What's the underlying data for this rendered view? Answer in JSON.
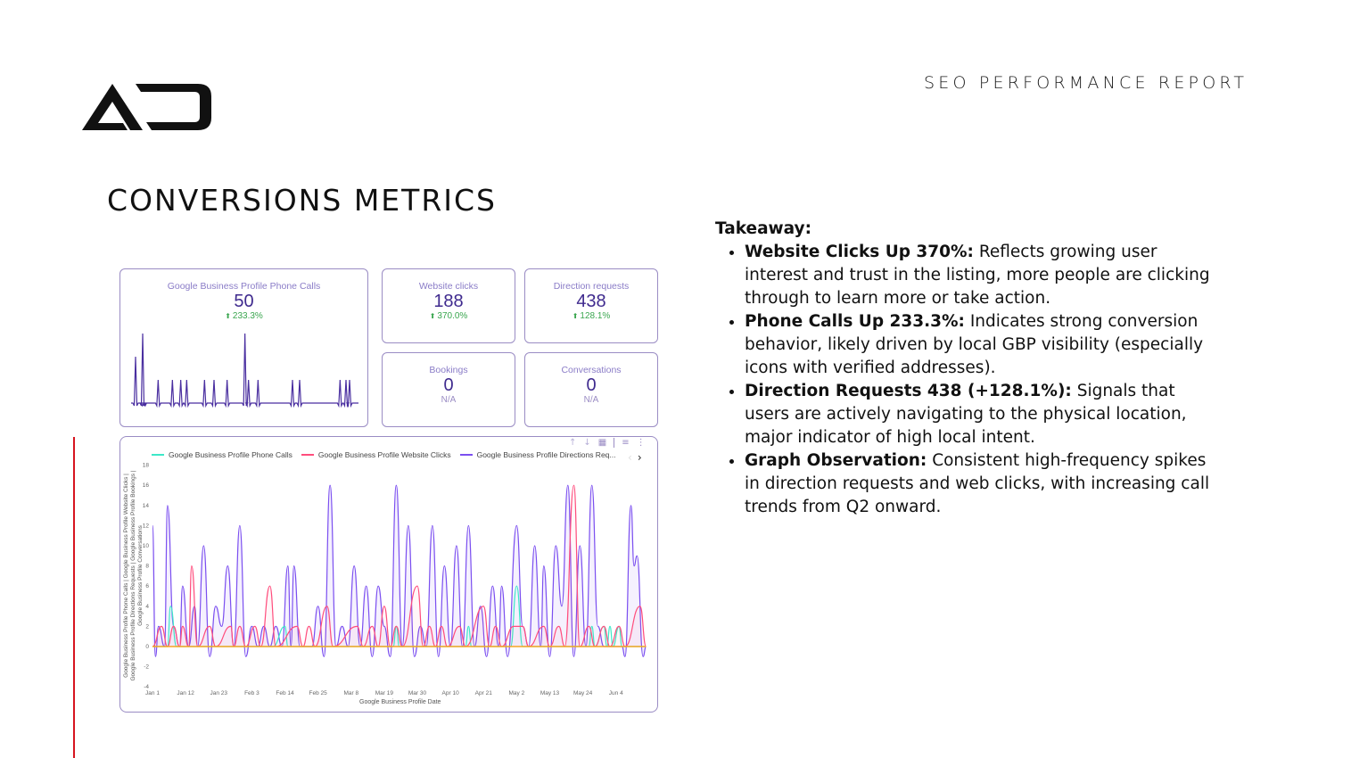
{
  "header": {
    "logo_icon": "ao-logo-icon",
    "report_title": "SEO PERFORMANCE REPORT"
  },
  "page_title": "CONVERSIONS METRICS",
  "scorecards": [
    {
      "label": "Google Business Profile Phone Calls",
      "value": "50",
      "delta": "233.3%",
      "delta_icon": "arrow-up-icon"
    },
    {
      "label": "Website clicks",
      "value": "188",
      "delta": "370.0%",
      "delta_icon": "arrow-up-icon"
    },
    {
      "label": "Direction requests",
      "value": "438",
      "delta": "128.1%",
      "delta_icon": "arrow-up-icon"
    },
    {
      "label": "Bookings",
      "value": "0",
      "delta": "N/A"
    },
    {
      "label": "Conversations",
      "value": "0",
      "delta": "N/A"
    }
  ],
  "colors": {
    "accent_purple": "#7b4ff0",
    "phone_calls": "#3de8c8",
    "website_clicks": "#ff4d7d",
    "directions": "#7b4ff0",
    "bookings_conversations": "#f5a623",
    "card_border": "#9a8cc4",
    "positive": "#3aa64f",
    "red_rule": "#d6141f"
  },
  "chart_toolbar": {
    "sort_up_icon": "↑",
    "sort_down_icon": "↓",
    "chart_icon": "▦",
    "filter_icon": "≡",
    "more_icon": "⋮",
    "prev_icon": "‹",
    "next_icon": "›"
  },
  "chart_data": [
    {
      "type": "line",
      "title": "Google Business Profile Phone Calls (sparkline)",
      "x": [
        0,
        6,
        7,
        19,
        31,
        38,
        43,
        58,
        66,
        77,
        92,
        95,
        103,
        132,
        138,
        172,
        177,
        180
      ],
      "values": [
        2,
        3,
        0,
        1,
        1,
        1,
        1,
        1,
        1,
        1,
        3,
        1,
        1,
        1,
        1,
        1,
        1,
        1
      ],
      "note": "spike positions only; baseline 0"
    },
    {
      "type": "line",
      "title": "",
      "xlabel": "Google Business Profile Date",
      "ylabel": "Google Business Profile Phone Calls | Google Business Profile Website Clicks | Google Business Profile Directions Requests | Google Business Profile Bookings | Google Business Profile Conversations",
      "ylim": [
        -4,
        18
      ],
      "yticks": [
        -4,
        -2,
        0,
        2,
        4,
        6,
        8,
        10,
        12,
        14,
        16,
        18
      ],
      "xticks": [
        "Jan 1",
        "Jan 12",
        "Jan 23",
        "Feb 3",
        "Feb 14",
        "Feb 25",
        "Mar 8",
        "Mar 19",
        "Mar 30",
        "Apr 10",
        "Apr 21",
        "May 2",
        "May 13",
        "May 24",
        "Jun 4"
      ],
      "legend": [
        "Google Business Profile Phone Calls",
        "Google Business Profile Website Clicks",
        "Google Business Profile Directions Req..."
      ],
      "legend_position": "top",
      "grid": false,
      "x_day_range": [
        0,
        164
      ],
      "series": [
        {
          "name": "Google Business Profile Phone Calls",
          "color": "#3de8c8",
          "points": [
            [
              0,
              0
            ],
            [
              5,
              0
            ],
            [
              6,
              4
            ],
            [
              8,
              0
            ],
            [
              15,
              0
            ],
            [
              40,
              0
            ],
            [
              44,
              2
            ],
            [
              45,
              0
            ],
            [
              80,
              0
            ],
            [
              81,
              2
            ],
            [
              82,
              0
            ],
            [
              104,
              0
            ],
            [
              105,
              2
            ],
            [
              106,
              0
            ],
            [
              119,
              0
            ],
            [
              121,
              6
            ],
            [
              123,
              0
            ],
            [
              145,
              0
            ],
            [
              146,
              2
            ],
            [
              147,
              0
            ],
            [
              150,
              2
            ],
            [
              151,
              0
            ],
            [
              152,
              2
            ],
            [
              153,
              0
            ],
            [
              155,
              2
            ],
            [
              156,
              0
            ],
            [
              164,
              0
            ]
          ]
        },
        {
          "name": "Google Business Profile Website Clicks",
          "color": "#ff4d7d",
          "points": [
            [
              0,
              0
            ],
            [
              3,
              2
            ],
            [
              5,
              0
            ],
            [
              7,
              2
            ],
            [
              9,
              0
            ],
            [
              10,
              2
            ],
            [
              12,
              0
            ],
            [
              13,
              8
            ],
            [
              15,
              0
            ],
            [
              19,
              2
            ],
            [
              21,
              0
            ],
            [
              26,
              2
            ],
            [
              27,
              0
            ],
            [
              29,
              2
            ],
            [
              31,
              0
            ],
            [
              34,
              2
            ],
            [
              36,
              0
            ],
            [
              39,
              6
            ],
            [
              41,
              0
            ],
            [
              48,
              2
            ],
            [
              50,
              0
            ],
            [
              52,
              2
            ],
            [
              54,
              0
            ],
            [
              58,
              4
            ],
            [
              60,
              0
            ],
            [
              68,
              2
            ],
            [
              70,
              0
            ],
            [
              73,
              2
            ],
            [
              75,
              0
            ],
            [
              77,
              4
            ],
            [
              79,
              0
            ],
            [
              81,
              2
            ],
            [
              83,
              0
            ],
            [
              88,
              6
            ],
            [
              90,
              0
            ],
            [
              92,
              2
            ],
            [
              94,
              0
            ],
            [
              96,
              2
            ],
            [
              98,
              0
            ],
            [
              102,
              2
            ],
            [
              104,
              0
            ],
            [
              110,
              4
            ],
            [
              112,
              0
            ],
            [
              114,
              2
            ],
            [
              116,
              0
            ],
            [
              120,
              2
            ],
            [
              123,
              2
            ],
            [
              125,
              0
            ],
            [
              130,
              2
            ],
            [
              132,
              0
            ],
            [
              135,
              2
            ],
            [
              137,
              0
            ],
            [
              140,
              16
            ],
            [
              142,
              0
            ],
            [
              145,
              2
            ],
            [
              147,
              0
            ],
            [
              150,
              2
            ],
            [
              152,
              0
            ],
            [
              155,
              2
            ],
            [
              157,
              0
            ],
            [
              162,
              4
            ],
            [
              164,
              0
            ]
          ]
        },
        {
          "name": "Google Business Profile Directions Requests",
          "color": "#7b4ff0",
          "points": [
            [
              0,
              12
            ],
            [
              1,
              -1
            ],
            [
              2,
              2
            ],
            [
              4,
              0
            ],
            [
              5,
              14
            ],
            [
              7,
              2
            ],
            [
              9,
              0
            ],
            [
              10,
              6
            ],
            [
              12,
              0
            ],
            [
              14,
              4
            ],
            [
              15,
              0
            ],
            [
              17,
              10
            ],
            [
              19,
              -1
            ],
            [
              21,
              4
            ],
            [
              23,
              2
            ],
            [
              25,
              8
            ],
            [
              27,
              0
            ],
            [
              29,
              12
            ],
            [
              31,
              -1
            ],
            [
              33,
              2
            ],
            [
              35,
              0
            ],
            [
              37,
              2
            ],
            [
              39,
              0
            ],
            [
              41,
              2
            ],
            [
              43,
              0
            ],
            [
              45,
              8
            ],
            [
              46,
              0
            ],
            [
              47,
              8
            ],
            [
              49,
              0
            ],
            [
              53,
              0
            ],
            [
              55,
              4
            ],
            [
              57,
              -1
            ],
            [
              59,
              16
            ],
            [
              61,
              0
            ],
            [
              63,
              2
            ],
            [
              65,
              0
            ],
            [
              67,
              8
            ],
            [
              69,
              0
            ],
            [
              71,
              6
            ],
            [
              73,
              -1
            ],
            [
              75,
              6
            ],
            [
              77,
              2
            ],
            [
              79,
              -1
            ],
            [
              81,
              16
            ],
            [
              83,
              0
            ],
            [
              85,
              12
            ],
            [
              87,
              -1
            ],
            [
              89,
              2
            ],
            [
              91,
              0
            ],
            [
              93,
              12
            ],
            [
              95,
              -1
            ],
            [
              97,
              8
            ],
            [
              99,
              0
            ],
            [
              101,
              10
            ],
            [
              103,
              0
            ],
            [
              105,
              12
            ],
            [
              107,
              0
            ],
            [
              109,
              4
            ],
            [
              111,
              -1
            ],
            [
              113,
              6
            ],
            [
              115,
              0
            ],
            [
              116,
              6
            ],
            [
              118,
              -1
            ],
            [
              121,
              12
            ],
            [
              123,
              2
            ],
            [
              125,
              0
            ],
            [
              127,
              10
            ],
            [
              129,
              0
            ],
            [
              130,
              8
            ],
            [
              132,
              -1
            ],
            [
              134,
              10
            ],
            [
              136,
              4
            ],
            [
              138,
              16
            ],
            [
              140,
              -1
            ],
            [
              142,
              10
            ],
            [
              144,
              0
            ],
            [
              146,
              16
            ],
            [
              148,
              2
            ],
            [
              150,
              0
            ],
            [
              156,
              0
            ],
            [
              157,
              -1
            ],
            [
              159,
              14
            ],
            [
              160,
              8
            ],
            [
              161,
              9
            ],
            [
              163,
              -1
            ],
            [
              164,
              0
            ]
          ]
        },
        {
          "name": "Google Business Profile Bookings / Conversations",
          "color": "#f5a623",
          "points": [
            [
              0,
              0
            ],
            [
              164,
              0
            ]
          ]
        }
      ]
    }
  ],
  "takeaway": {
    "heading": "Takeaway:",
    "bullets": [
      {
        "bold": "Website Clicks Up 370%:",
        "text": " Reflects growing user interest and trust in the listing, more people are clicking through to learn more or take action."
      },
      {
        "bold": "Phone Calls Up 233.3%:",
        "text": " Indicates strong conversion behavior, likely driven by local GBP visibility (especially icons with verified addresses)."
      },
      {
        "bold": "Direction Requests 438 (+128.1%):",
        "text": " Signals that users are actively navigating to the physical location, major indicator of high local intent."
      },
      {
        "bold": "Graph Observation:",
        "text": " Consistent high-frequency spikes in direction requests and web clicks, with increasing call trends from Q2 onward."
      }
    ]
  }
}
